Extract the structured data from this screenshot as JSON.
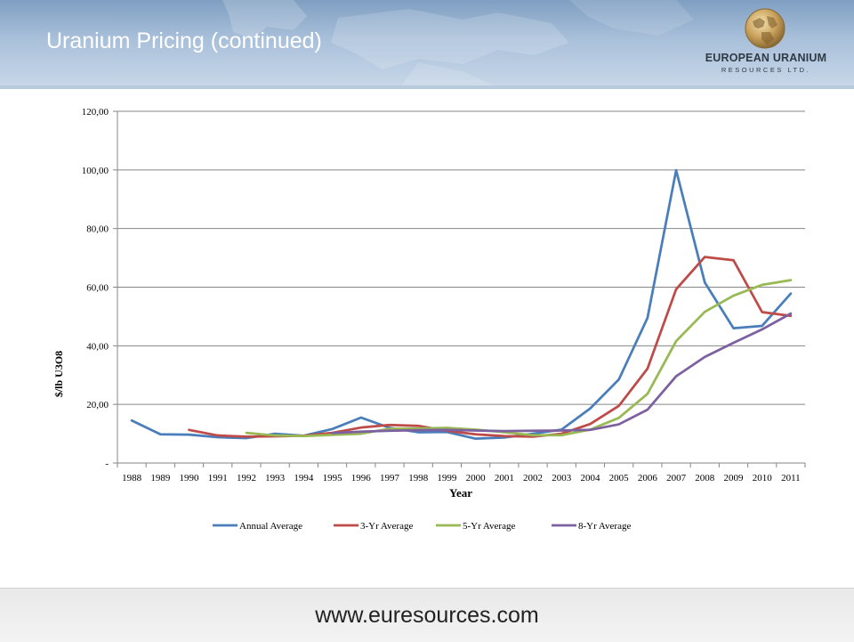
{
  "slide": {
    "title": "Uranium Pricing (continued)",
    "footer_url": "www.euresources.com"
  },
  "logo": {
    "line1": "EUROPEAN URANIUM",
    "line2": "RESOURCES LTD."
  },
  "chart_data": {
    "type": "line",
    "title": "",
    "xlabel": "Year",
    "ylabel": "$/lb U3O8",
    "ylim": [
      0,
      120
    ],
    "yticks": [
      0,
      20,
      40,
      60,
      80,
      100,
      120
    ],
    "ytick_labels": [
      "-",
      "20,00",
      "40,00",
      "60,00",
      "80,00",
      "100,00",
      "120,00"
    ],
    "categories": [
      "1988",
      "1989",
      "1990",
      "1991",
      "1992",
      "1993",
      "1994",
      "1995",
      "1996",
      "1997",
      "1998",
      "1999",
      "2000",
      "2001",
      "2002",
      "2003",
      "2004",
      "2005",
      "2006",
      "2007",
      "2008",
      "2009",
      "2010",
      "2011"
    ],
    "grid": "horizontal",
    "legend": "bottom",
    "series": [
      {
        "name": "Annual Average",
        "color": "#4a7ebb",
        "values": [
          14.5,
          9.8,
          9.7,
          8.8,
          8.5,
          10.0,
          9.3,
          11.6,
          15.5,
          12.0,
          10.5,
          10.6,
          8.3,
          8.7,
          10.0,
          11.4,
          18.6,
          28.5,
          49.5,
          99.9,
          61.6,
          46.0,
          46.8,
          57.8
        ]
      },
      {
        "name": "3-Yr Average",
        "color": "#be4b48",
        "values": [
          null,
          null,
          11.3,
          9.4,
          9.0,
          9.1,
          9.3,
          10.3,
          12.1,
          13.0,
          12.7,
          11.0,
          9.8,
          9.2,
          9.0,
          10.0,
          13.3,
          19.5,
          32.2,
          59.3,
          70.3,
          69.2,
          51.5,
          50.2
        ]
      },
      {
        "name": "5-Yr Average",
        "color": "#98b954",
        "values": [
          null,
          null,
          null,
          null,
          10.3,
          9.4,
          9.2,
          9.6,
          10.0,
          11.7,
          11.8,
          12.0,
          11.4,
          10.5,
          9.5,
          9.5,
          11.4,
          15.4,
          23.6,
          41.6,
          51.6,
          57.1,
          60.8,
          62.4
        ]
      },
      {
        "name": "8-Yr Average",
        "color": "#7d60a0",
        "values": [
          null,
          null,
          null,
          null,
          null,
          null,
          null,
          10.2,
          10.7,
          11.0,
          11.2,
          11.3,
          11.1,
          10.9,
          11.0,
          11.1,
          11.3,
          13.2,
          18.2,
          29.6,
          36.2,
          41.0,
          45.6,
          51.0
        ]
      }
    ]
  }
}
